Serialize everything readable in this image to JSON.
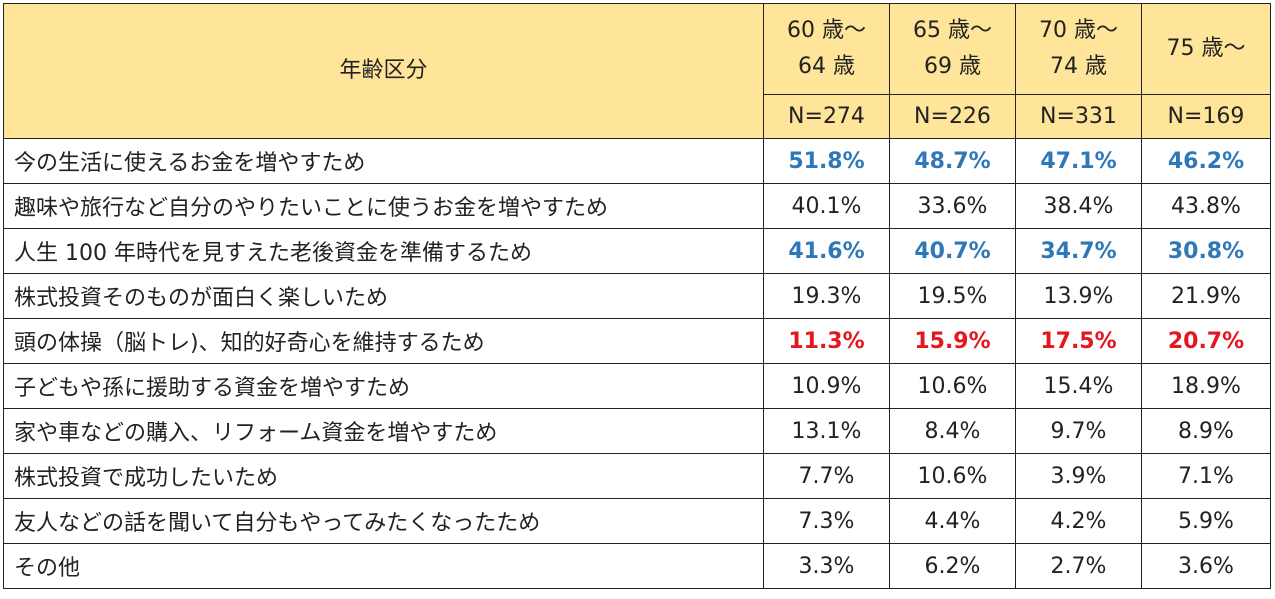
{
  "table": {
    "corner_label": "年齢区分",
    "columns": [
      {
        "age_line1": "60 歳～",
        "age_line2": "64 歳",
        "n": "N=274"
      },
      {
        "age_line1": "65 歳～",
        "age_line2": "69 歳",
        "n": "N=226"
      },
      {
        "age_line1": "70 歳～",
        "age_line2": "74 歳",
        "n": "N=331"
      },
      {
        "age_line1": "75 歳～",
        "age_line2": "",
        "n": "N=169"
      }
    ],
    "rows": [
      {
        "label": "今の生活に使えるお金を増やすため",
        "values": [
          "51.8%",
          "48.7%",
          "47.1%",
          "46.2%"
        ],
        "highlight": "blue"
      },
      {
        "label": "趣味や旅行など自分のやりたいことに使うお金を増やすため",
        "values": [
          "40.1%",
          "33.6%",
          "38.4%",
          "43.8%"
        ],
        "highlight": ""
      },
      {
        "label": "人生 100 年時代を見すえた老後資金を準備するため",
        "values": [
          "41.6%",
          "40.7%",
          "34.7%",
          "30.8%"
        ],
        "highlight": "blue"
      },
      {
        "label": "株式投資そのものが面白く楽しいため",
        "values": [
          "19.3%",
          "19.5%",
          "13.9%",
          "21.9%"
        ],
        "highlight": ""
      },
      {
        "label": "頭の体操（脳トレ)、知的好奇心を維持するため",
        "values": [
          "11.3%",
          "15.9%",
          "17.5%",
          "20.7%"
        ],
        "highlight": "red"
      },
      {
        "label": "子どもや孫に援助する資金を増やすため",
        "values": [
          "10.9%",
          "10.6%",
          "15.4%",
          "18.9%"
        ],
        "highlight": ""
      },
      {
        "label": "家や車などの購入、リフォーム資金を増やすため",
        "values": [
          "13.1%",
          "8.4%",
          "9.7%",
          "8.9%"
        ],
        "highlight": ""
      },
      {
        "label": "株式投資で成功したいため",
        "values": [
          "7.7%",
          "10.6%",
          "3.9%",
          "7.1%"
        ],
        "highlight": ""
      },
      {
        "label": "友人などの話を聞いて自分もやってみたくなったため",
        "values": [
          "7.3%",
          "4.4%",
          "4.2%",
          "5.9%"
        ],
        "highlight": ""
      },
      {
        "label": "その他",
        "values": [
          "3.3%",
          "6.2%",
          "2.7%",
          "3.6%"
        ],
        "highlight": ""
      }
    ],
    "colors": {
      "header_bg": "#ffe59a",
      "blue": "#2e78b8",
      "red": "#e3171e"
    }
  }
}
